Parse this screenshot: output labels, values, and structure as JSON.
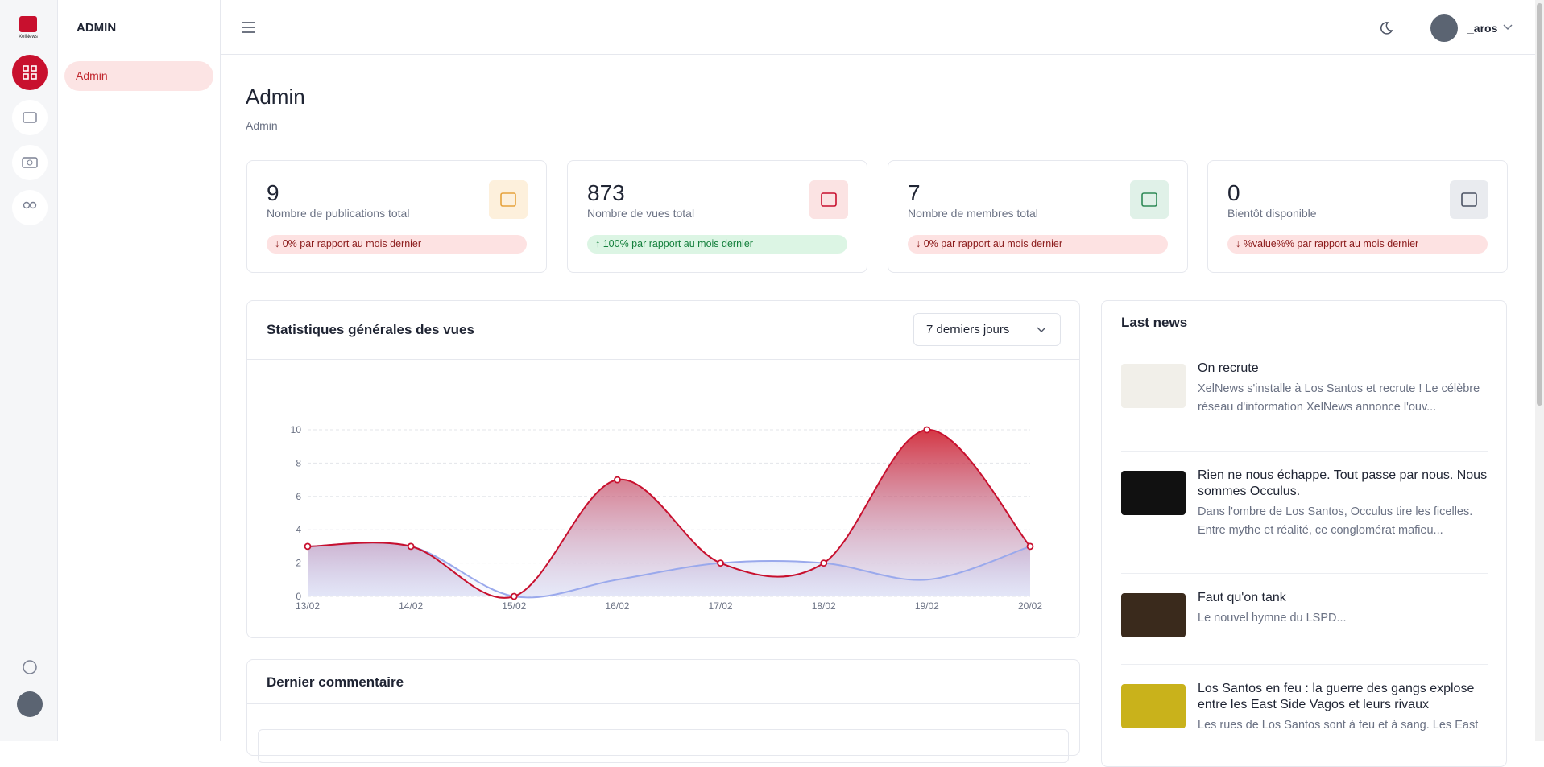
{
  "brand": "XelNews",
  "header": {
    "title": "ADMIN",
    "user": "_aros"
  },
  "sidebar": {
    "items": [
      "Admin"
    ]
  },
  "page": {
    "title": "Admin",
    "breadcrumb": "Admin"
  },
  "stats": [
    {
      "value": 9,
      "label": "Nombre de publications total",
      "change": "↓ 0% par rapport au mois dernier",
      "trend": "down"
    },
    {
      "value": 873,
      "label": "Nombre de vues total",
      "change": "↑ 100% par rapport au mois dernier",
      "trend": "up"
    },
    {
      "value": 7,
      "label": "Nombre de membres total",
      "change": "↓ 0% par rapport au mois dernier",
      "trend": "down"
    },
    {
      "value": 0,
      "label": "Bientôt disponible",
      "change": "↓ %value%% par rapport au mois dernier",
      "trend": "down"
    }
  ],
  "chart_data": {
    "type": "line",
    "title": "Statistiques générales des vues",
    "range_select": "7 derniers jours",
    "x": [
      "13/02",
      "14/02",
      "15/02",
      "16/02",
      "17/02",
      "18/02",
      "19/02",
      "20/02"
    ],
    "series": [
      {
        "color": "#9aa9ec",
        "values": [
          3,
          3,
          0,
          1,
          2,
          2,
          1,
          3
        ]
      },
      {
        "color": "#c8102e",
        "values": [
          3,
          3,
          0,
          7,
          2,
          2,
          10,
          3
        ]
      }
    ],
    "ylim": [
      0,
      10
    ],
    "yticks": [
      0,
      2,
      4,
      6,
      8,
      10
    ],
    "grid": true
  },
  "news": {
    "title": "Last news",
    "items": [
      {
        "title": "On recrute",
        "text": "XelNews s'installe à Los Santos et recrute ! Le célèbre réseau d'information XelNews annonce l'ouv..."
      },
      {
        "title": "Rien ne nous échappe. Tout passe par nous. Nous sommes Occulus.",
        "text": "Dans l'ombre de Los Santos, Occulus tire les ficelles. Entre mythe et réalité, ce conglomérat mafieu..."
      },
      {
        "title": "Faut qu'on tank",
        "text": "Le nouvel hymne du LSPD..."
      },
      {
        "title": "Los Santos en feu : la guerre des gangs explose entre les East Side Vagos et leurs rivaux",
        "text": "Les rues de Los Santos sont à feu et à sang. Les East"
      }
    ]
  },
  "comments": {
    "title": "Dernier commentaire"
  }
}
